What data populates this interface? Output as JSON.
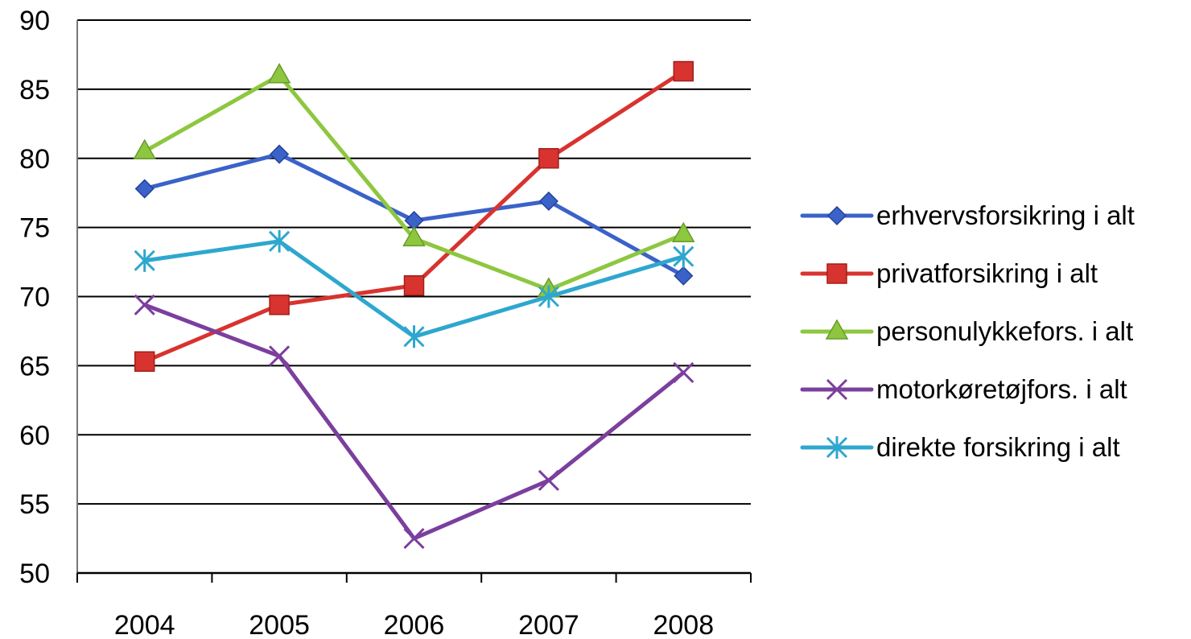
{
  "chart_data": {
    "type": "line",
    "title": "",
    "xlabel": "",
    "ylabel": "",
    "categories": [
      "2004",
      "2005",
      "2006",
      "2007",
      "2008"
    ],
    "ylim": [
      50,
      90
    ],
    "yticks": [
      50,
      55,
      60,
      65,
      70,
      75,
      80,
      85,
      90
    ],
    "grid": "horizontal",
    "legend_position": "right",
    "series": [
      {
        "name": "erhvervsforsikring i alt",
        "values": [
          77.8,
          80.3,
          75.5,
          76.9,
          71.5
        ],
        "color": "#3a62c9",
        "marker": "diamond"
      },
      {
        "name": "privatforsikring i alt",
        "values": [
          65.3,
          69.4,
          70.8,
          80.0,
          86.3
        ],
        "color": "#d8332f",
        "marker": "square"
      },
      {
        "name": "personulykkefors. i alt",
        "values": [
          80.5,
          86.0,
          74.2,
          70.5,
          74.5
        ],
        "color": "#8dc73f",
        "marker": "triangle"
      },
      {
        "name": "motorkøretøjfors. i alt",
        "values": [
          69.4,
          65.7,
          52.5,
          56.7,
          64.5
        ],
        "color": "#7b3f9e",
        "marker": "x"
      },
      {
        "name": "direkte forsikring i alt",
        "values": [
          72.6,
          74.0,
          67.1,
          70.0,
          72.9
        ],
        "color": "#2ea7cf",
        "marker": "asterisk"
      }
    ]
  }
}
